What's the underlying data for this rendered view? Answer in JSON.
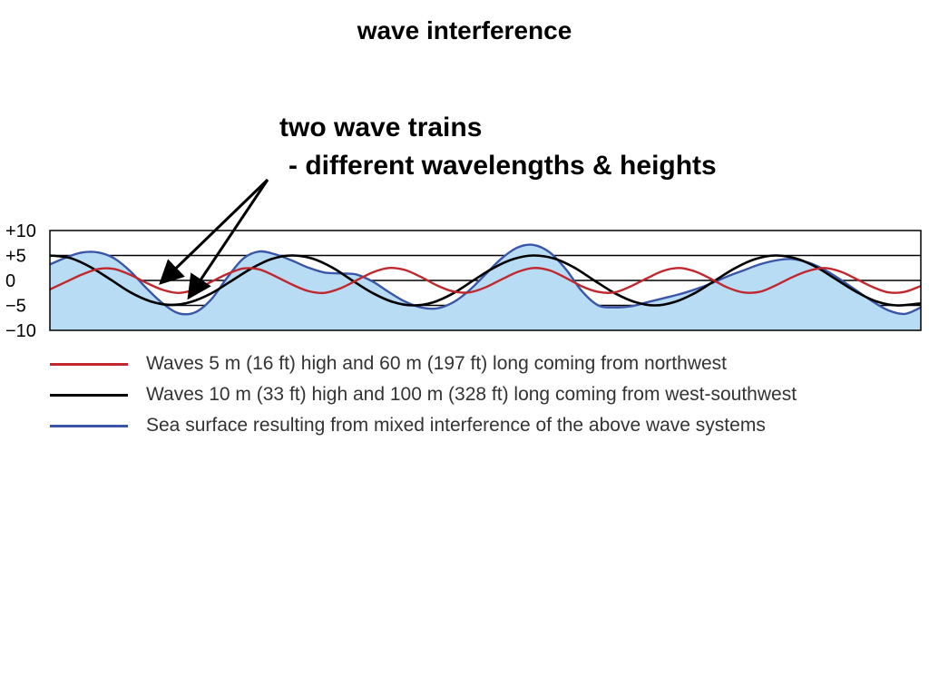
{
  "title": "wave interference",
  "annotation": {
    "line1": "two wave trains",
    "line2": "- different wavelengths & heights"
  },
  "colors": {
    "red_wave": "#c0282d",
    "black_wave": "#000000",
    "sea_surface_line": "#3a56a8",
    "sea_surface_fill": "#b9dcf5"
  },
  "chart_data": {
    "type": "line",
    "ytick_labels": [
      "+10",
      "+5",
      "0",
      "−5",
      "−10"
    ],
    "ylim": [
      -10,
      10
    ],
    "y_gridlines": [
      5,
      0,
      -5
    ],
    "series": [
      {
        "name": "Waves 5 m (16 ft) high and 60 m (197 ft) long coming from northwest",
        "color": "#c0282d",
        "amplitude": 2.5,
        "wavelength_m": 60,
        "points": [
          [
            0,
            -1.8
          ],
          [
            4,
            -0.3
          ],
          [
            8,
            1.2
          ],
          [
            12,
            2.3
          ],
          [
            16,
            2.3
          ],
          [
            20,
            1.1
          ],
          [
            24,
            -0.5
          ],
          [
            28,
            -1.9
          ],
          [
            32,
            -2.5
          ],
          [
            36,
            -1.8
          ],
          [
            40,
            -0.3
          ],
          [
            44,
            1.3
          ],
          [
            48,
            2.4
          ],
          [
            52,
            2.2
          ],
          [
            56,
            0.8
          ],
          [
            60,
            -0.8
          ],
          [
            64,
            -2.1
          ],
          [
            68,
            -2.5
          ],
          [
            72,
            -1.6
          ],
          [
            76,
            0
          ],
          [
            80,
            1.6
          ],
          [
            84,
            2.5
          ],
          [
            88,
            2.1
          ],
          [
            92,
            0.7
          ],
          [
            96,
            -1
          ],
          [
            100,
            -2.2
          ],
          [
            104,
            -2.4
          ],
          [
            108,
            -1.4
          ],
          [
            112,
            0.2
          ],
          [
            116,
            1.7
          ],
          [
            120,
            2.5
          ],
          [
            124,
            2
          ],
          [
            128,
            0.5
          ],
          [
            132,
            -1.2
          ],
          [
            136,
            -2.3
          ],
          [
            140,
            -2.4
          ],
          [
            144,
            -1.2
          ],
          [
            148,
            0.4
          ],
          [
            152,
            1.9
          ],
          [
            156,
            2.5
          ],
          [
            160,
            1.8
          ],
          [
            164,
            0.3
          ],
          [
            168,
            -1.4
          ],
          [
            172,
            -2.4
          ],
          [
            176,
            -2.3
          ],
          [
            180,
            -1
          ],
          [
            184,
            0.6
          ],
          [
            188,
            1.9
          ],
          [
            192,
            2.5
          ],
          [
            196,
            1.8
          ],
          [
            200,
            0.3
          ],
          [
            204,
            -1.3
          ],
          [
            208,
            -2.4
          ],
          [
            212,
            -2.3
          ],
          [
            216,
            -1.1
          ]
        ]
      },
      {
        "name": "Waves 10 m (33 ft) high and 100 m (328 ft) long coming from west-southwest",
        "color": "#000000",
        "amplitude": 5,
        "wavelength_m": 100,
        "points": [
          [
            0,
            5
          ],
          [
            5,
            4.5
          ],
          [
            10,
            2.7
          ],
          [
            15,
            0.2
          ],
          [
            20,
            -2.4
          ],
          [
            25,
            -4.2
          ],
          [
            30,
            -4.9
          ],
          [
            35,
            -4.3
          ],
          [
            40,
            -2.6
          ],
          [
            45,
            -0.1
          ],
          [
            50,
            2.4
          ],
          [
            55,
            4.3
          ],
          [
            60,
            5
          ],
          [
            65,
            4.4
          ],
          [
            70,
            2.6
          ],
          [
            75,
            0
          ],
          [
            80,
            -2.5
          ],
          [
            85,
            -4.3
          ],
          [
            90,
            -5
          ],
          [
            95,
            -4.4
          ],
          [
            100,
            -2.6
          ],
          [
            105,
            0
          ],
          [
            110,
            2.5
          ],
          [
            115,
            4.3
          ],
          [
            120,
            5
          ],
          [
            125,
            4.4
          ],
          [
            130,
            2.6
          ],
          [
            135,
            0
          ],
          [
            140,
            -2.5
          ],
          [
            145,
            -4.3
          ],
          [
            150,
            -5
          ],
          [
            155,
            -4.3
          ],
          [
            160,
            -2.5
          ],
          [
            165,
            0
          ],
          [
            170,
            2.5
          ],
          [
            175,
            4.3
          ],
          [
            180,
            5
          ],
          [
            185,
            4.4
          ],
          [
            190,
            2.7
          ],
          [
            195,
            0.2
          ],
          [
            200,
            -2.3
          ],
          [
            205,
            -4.2
          ],
          [
            210,
            -5
          ],
          [
            216,
            -4.6
          ]
        ]
      },
      {
        "name": "Sea surface resulting from mixed interference of the above wave systems",
        "color": "#3a56a8",
        "fill": "#b9dcf5",
        "points": [
          [
            0,
            3.2
          ],
          [
            4,
            4.6
          ],
          [
            8,
            5.6
          ],
          [
            12,
            5.6
          ],
          [
            16,
            4.4
          ],
          [
            20,
            1.8
          ],
          [
            24,
            -1.6
          ],
          [
            28,
            -4.6
          ],
          [
            32,
            -6.6
          ],
          [
            36,
            -6.4
          ],
          [
            40,
            -3.8
          ],
          [
            44,
            0.6
          ],
          [
            48,
            4.4
          ],
          [
            52,
            5.8
          ],
          [
            56,
            5.2
          ],
          [
            60,
            4
          ],
          [
            64,
            2.6
          ],
          [
            68,
            1.6
          ],
          [
            72,
            1.4
          ],
          [
            76,
            1.2
          ],
          [
            80,
            -0.2
          ],
          [
            84,
            -2.3
          ],
          [
            88,
            -4.2
          ],
          [
            92,
            -5.4
          ],
          [
            96,
            -5.6
          ],
          [
            100,
            -4.4
          ],
          [
            104,
            -2
          ],
          [
            108,
            1.2
          ],
          [
            112,
            4.4
          ],
          [
            116,
            6.6
          ],
          [
            120,
            7.1
          ],
          [
            124,
            5.6
          ],
          [
            128,
            2.2
          ],
          [
            132,
            -2.2
          ],
          [
            136,
            -5
          ],
          [
            140,
            -5.4
          ],
          [
            144,
            -5.2
          ],
          [
            148,
            -4.4
          ],
          [
            152,
            -3.6
          ],
          [
            156,
            -2.8
          ],
          [
            160,
            -1.8
          ],
          [
            164,
            -0.6
          ],
          [
            168,
            0.8
          ],
          [
            172,
            2
          ],
          [
            176,
            3.2
          ],
          [
            180,
            4
          ],
          [
            184,
            4.3
          ],
          [
            188,
            3.6
          ],
          [
            192,
            2.2
          ],
          [
            196,
            0.2
          ],
          [
            200,
            -2
          ],
          [
            204,
            -4.2
          ],
          [
            208,
            -6
          ],
          [
            212,
            -6.7
          ],
          [
            216,
            -5.4
          ]
        ]
      }
    ]
  }
}
